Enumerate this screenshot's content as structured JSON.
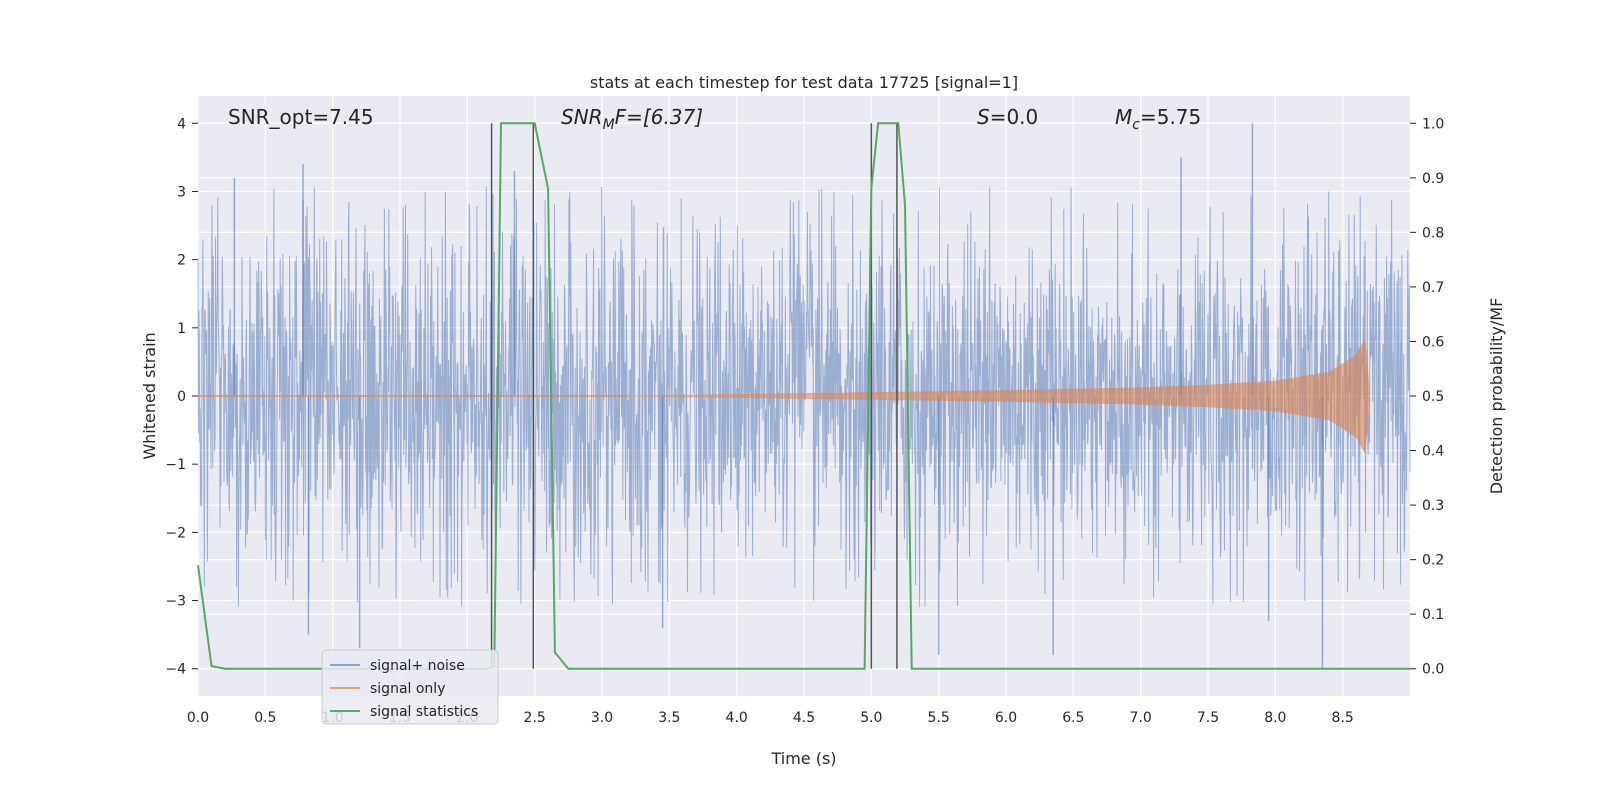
{
  "chart_data": {
    "type": "line",
    "title": "stats at each timestep for test data 17725 [signal=1]",
    "xlabel": "Time (s)",
    "ylabel": "Whitened strain",
    "y2label": "Detection probability/MF",
    "xlim": [
      0.0,
      9.0
    ],
    "ylim": [
      -4.4,
      4.4
    ],
    "y2lim": [
      -0.05,
      1.05
    ],
    "xticks": [
      0.0,
      0.5,
      1.0,
      1.5,
      2.0,
      2.5,
      3.0,
      3.5,
      4.0,
      4.5,
      5.0,
      5.5,
      6.0,
      6.5,
      7.0,
      7.5,
      8.0,
      8.5
    ],
    "xtick_labels": [
      "0.0",
      "0.5",
      "1.0",
      "1.5",
      "2.0",
      "2.5",
      "3.0",
      "3.5",
      "4.0",
      "4.5",
      "5.0",
      "5.5",
      "6.0",
      "6.5",
      "7.0",
      "7.5",
      "8.0",
      "8.5"
    ],
    "yticks": [
      -4,
      -3,
      -2,
      -1,
      0,
      1,
      2,
      3,
      4
    ],
    "ytick_labels": [
      "−4",
      "−3",
      "−2",
      "−1",
      "0",
      "1",
      "2",
      "3",
      "4"
    ],
    "y2ticks": [
      0.0,
      0.1,
      0.2,
      0.3,
      0.4,
      0.5,
      0.6,
      0.7,
      0.8,
      0.9,
      1.0
    ],
    "y2tick_labels": [
      "0.0",
      "0.1",
      "0.2",
      "0.3",
      "0.4",
      "0.5",
      "0.6",
      "0.7",
      "0.8",
      "0.9",
      "1.0"
    ],
    "grid": true,
    "legend_position": "lower-left",
    "series": [
      {
        "name": "signal+ noise",
        "color": "#4c72b0",
        "kind": "noise",
        "typical_amplitude": 1.6,
        "extreme_samples": [
          {
            "x": 0.78,
            "y": 3.4
          },
          {
            "x": 0.27,
            "y": 3.2
          },
          {
            "x": 2.35,
            "y": 3.3
          },
          {
            "x": 7.83,
            "y": 4.0
          },
          {
            "x": 7.3,
            "y": 3.5
          },
          {
            "x": 0.82,
            "y": -3.5
          },
          {
            "x": 1.2,
            "y": -3.7
          },
          {
            "x": 3.45,
            "y": -3.4
          },
          {
            "x": 5.5,
            "y": -3.8
          },
          {
            "x": 6.35,
            "y": -3.8
          },
          {
            "x": 8.35,
            "y": -4.0
          },
          {
            "x": 7.95,
            "y": -3.3
          }
        ]
      },
      {
        "name": "signal only",
        "color": "#dd8452",
        "kind": "chirp",
        "envelope": [
          [
            3.2,
            0.0
          ],
          [
            5.0,
            0.05
          ],
          [
            6.0,
            0.08
          ],
          [
            7.0,
            0.12
          ],
          [
            7.5,
            0.16
          ],
          [
            8.0,
            0.22
          ],
          [
            8.4,
            0.35
          ],
          [
            8.6,
            0.6
          ],
          [
            8.67,
            0.85
          ],
          [
            8.7,
            0.0
          ]
        ]
      },
      {
        "name": "signal statistics",
        "color": "#55a868",
        "axis": "right",
        "x": [
          0.0,
          0.1,
          0.2,
          2.15,
          2.2,
          2.25,
          2.5,
          2.6,
          2.65,
          2.75,
          3.0,
          4.95,
          5.0,
          5.05,
          5.2,
          5.25,
          5.3,
          6.0,
          9.0
        ],
        "y": [
          0.19,
          0.005,
          0.0,
          0.0,
          0.005,
          1.0,
          1.0,
          0.88,
          0.03,
          0.0,
          0.0,
          0.0,
          0.88,
          1.0,
          1.0,
          0.85,
          0.0,
          0.0,
          0.0
        ]
      }
    ],
    "vertical_markers": [
      {
        "x": 2.18,
        "y_from": -4.0,
        "y_to": 4.0
      },
      {
        "x": 2.49,
        "y_from": -4.0,
        "y_to": 4.0
      },
      {
        "x": 5.0,
        "y_from": -4.0,
        "y_to": 4.0
      },
      {
        "x": 5.19,
        "y_from": -4.0,
        "y_to": 4.0
      }
    ],
    "annotations": {
      "snr_opt": "SNR_opt=7.45",
      "snr_mf_base": "SNR",
      "snr_mf_sub": "M",
      "snr_mf_rest": "F=[6.37]",
      "s_symbol": "S",
      "s_rest": "=0.0",
      "mc_symbol": "M",
      "mc_sub": "c",
      "mc_rest": "=5.75"
    },
    "colors": {
      "background": "#eaeaf2",
      "grid": "#ffffff",
      "marker": "#555555",
      "noise": "#4c72b0",
      "signal": "#dd8452",
      "stats": "#55a868"
    }
  }
}
